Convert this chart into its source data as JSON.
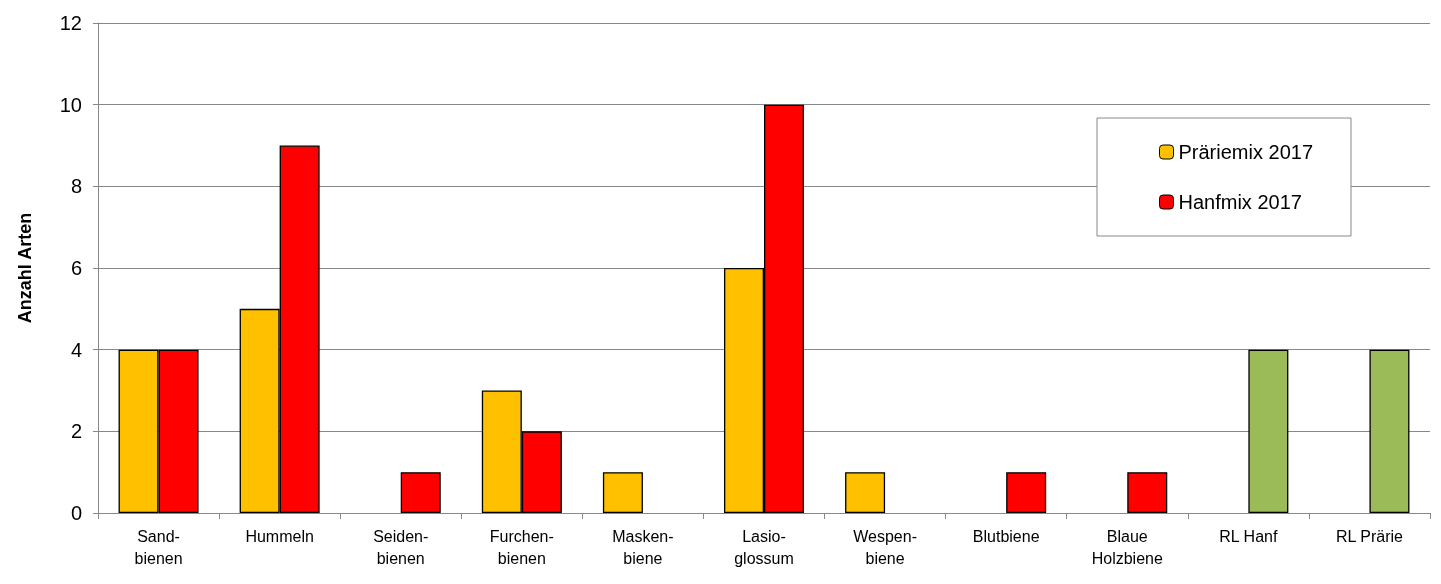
{
  "chart_data": {
    "type": "bar",
    "ylabel": "Anzahl Arten",
    "categories": [
      "Sand-\nbienen",
      "Hummeln",
      "Seiden-\nbienen",
      "Furchen-\nbienen",
      "Masken-\nbiene",
      "Lasio-\nglossum",
      "Wespen-\nbiene",
      "Blutbiene",
      "Blaue\nHolzbiene",
      "RL Hanf",
      "RL Prärie"
    ],
    "series": [
      {
        "name": "Präriemix 2017",
        "color": "#ffc000",
        "values": [
          4,
          5,
          null,
          3,
          1,
          6,
          1,
          null,
          null,
          null,
          null
        ]
      },
      {
        "name": "Hanfmix 2017",
        "color": "#ff0000",
        "colors": [
          "#ff0000",
          "#ff0000",
          "#ff0000",
          "#ff0000",
          "#ff0000",
          "#ff0000",
          "#ff0000",
          "#ff0000",
          "#ff0000",
          "#9bbb59",
          "#9bbb59"
        ],
        "values": [
          4,
          9,
          1,
          2,
          null,
          10,
          null,
          1,
          1,
          4,
          4
        ]
      }
    ],
    "ylim": [
      0,
      12
    ],
    "yticks": [
      0,
      2,
      4,
      6,
      8,
      10,
      12
    ],
    "grid": "y",
    "legend": "top right"
  }
}
